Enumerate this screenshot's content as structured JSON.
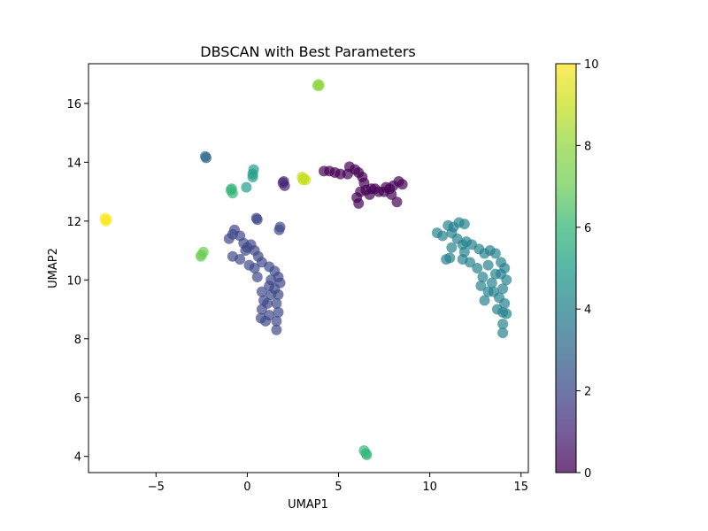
{
  "chart_data": {
    "type": "scatter",
    "title": "DBSCAN with Best Parameters",
    "xlabel": "UMAP1",
    "ylabel": "UMAP2",
    "xlim": [
      -8.7,
      15.4
    ],
    "ylim": [
      3.45,
      17.35
    ],
    "xticks": [
      -5,
      0,
      5,
      10,
      15
    ],
    "yticks": [
      4,
      6,
      8,
      10,
      12,
      14,
      16
    ],
    "grid": false,
    "colorbar": {
      "label": "",
      "range": [
        0,
        10
      ],
      "ticks": [
        0,
        2,
        4,
        6,
        8,
        10
      ],
      "colormap": "viridis"
    },
    "point_alpha": 0.7,
    "clusters": [
      {
        "label": 0,
        "color": "#440154",
        "points": [
          [
            4.2,
            13.7
          ],
          [
            4.5,
            13.7
          ],
          [
            4.8,
            13.65
          ],
          [
            5.1,
            13.6
          ],
          [
            5.5,
            13.6
          ],
          [
            5.6,
            13.85
          ],
          [
            5.9,
            13.75
          ],
          [
            6.1,
            13.65
          ],
          [
            6.3,
            13.5
          ],
          [
            6.4,
            13.3
          ],
          [
            6.2,
            13.0
          ],
          [
            6.0,
            12.8
          ],
          [
            6.1,
            12.6
          ],
          [
            6.5,
            13.05
          ],
          [
            6.8,
            13.1
          ],
          [
            7.2,
            13.0
          ],
          [
            7.5,
            13.0
          ],
          [
            7.8,
            13.1
          ],
          [
            8.0,
            13.2
          ],
          [
            8.3,
            13.35
          ],
          [
            8.5,
            13.25
          ],
          [
            7.9,
            12.9
          ],
          [
            8.2,
            12.65
          ],
          [
            7.6,
            13.15
          ],
          [
            7.0,
            13.1
          ],
          [
            6.7,
            12.9
          ]
        ]
      },
      {
        "label": 1,
        "color": "#482878",
        "points": [
          [
            2.0,
            13.35
          ],
          [
            2.05,
            13.2
          ],
          [
            1.95,
            13.3
          ]
        ]
      },
      {
        "label": 2,
        "color": "#3e4989",
        "points": [
          [
            -1.0,
            11.4
          ],
          [
            -0.8,
            11.55
          ],
          [
            -0.7,
            11.7
          ],
          [
            -0.4,
            11.5
          ],
          [
            -0.2,
            11.25
          ],
          [
            0.0,
            11.1
          ],
          [
            0.2,
            11.2
          ],
          [
            0.4,
            11.0
          ],
          [
            0.6,
            10.8
          ],
          [
            0.8,
            10.6
          ],
          [
            1.2,
            10.45
          ],
          [
            1.5,
            10.3
          ],
          [
            1.7,
            10.1
          ],
          [
            1.8,
            9.9
          ],
          [
            1.5,
            9.7
          ],
          [
            1.7,
            9.5
          ],
          [
            1.6,
            9.2
          ],
          [
            1.7,
            8.9
          ],
          [
            1.6,
            8.6
          ],
          [
            1.6,
            8.3
          ],
          [
            1.2,
            9.8
          ],
          [
            1.3,
            9.5
          ],
          [
            1.1,
            9.2
          ],
          [
            1.2,
            8.8
          ],
          [
            0.8,
            9.6
          ],
          [
            0.9,
            9.3
          ],
          [
            0.8,
            9.0
          ],
          [
            0.75,
            8.7
          ],
          [
            1.0,
            8.6
          ],
          [
            -0.8,
            10.8
          ],
          [
            -0.4,
            10.7
          ],
          [
            0.1,
            10.5
          ],
          [
            0.4,
            10.4
          ],
          [
            0.55,
            10.1
          ],
          [
            0.5,
            12.1
          ],
          [
            0.55,
            12.05
          ],
          [
            1.8,
            11.8
          ],
          [
            1.75,
            11.7
          ],
          [
            -0.1,
            11.0
          ],
          [
            1.3,
            10.0
          ]
        ]
      },
      {
        "label": 3,
        "color": "#31688e",
        "points": [
          [
            -2.3,
            14.2
          ],
          [
            -2.25,
            14.15
          ]
        ]
      },
      {
        "label": 4,
        "color": "#26828e",
        "points": [
          [
            10.4,
            11.6
          ],
          [
            10.7,
            11.5
          ],
          [
            11.0,
            11.85
          ],
          [
            11.3,
            11.8
          ],
          [
            11.6,
            11.95
          ],
          [
            11.9,
            11.9
          ],
          [
            11.2,
            11.6
          ],
          [
            11.5,
            11.4
          ],
          [
            11.8,
            11.2
          ],
          [
            11.2,
            11.1
          ],
          [
            12.0,
            11.3
          ],
          [
            11.9,
            10.95
          ],
          [
            12.3,
            11.2
          ],
          [
            12.7,
            11.05
          ],
          [
            13.0,
            10.9
          ],
          [
            13.3,
            11.0
          ],
          [
            13.6,
            10.9
          ],
          [
            13.9,
            10.6
          ],
          [
            14.1,
            10.4
          ],
          [
            14.2,
            10.0
          ],
          [
            14.0,
            9.7
          ],
          [
            13.8,
            9.4
          ],
          [
            14.1,
            9.2
          ],
          [
            14.0,
            8.9
          ],
          [
            14.2,
            8.85
          ],
          [
            14.0,
            8.5
          ],
          [
            14.0,
            8.2
          ],
          [
            13.6,
            10.2
          ],
          [
            13.4,
            9.9
          ],
          [
            13.2,
            9.6
          ],
          [
            13.0,
            9.3
          ],
          [
            12.8,
            9.8
          ],
          [
            13.2,
            10.5
          ],
          [
            12.6,
            10.4
          ],
          [
            12.2,
            10.6
          ],
          [
            11.8,
            10.7
          ],
          [
            11.1,
            10.75
          ],
          [
            10.9,
            10.7
          ],
          [
            13.7,
            9.0
          ],
          [
            13.9,
            10.2
          ],
          [
            12.9,
            10.1
          ],
          [
            13.5,
            9.6
          ]
        ]
      },
      {
        "label": 5,
        "color": "#1f9e89",
        "points": [
          [
            0.3,
            13.6
          ],
          [
            0.35,
            13.75
          ],
          [
            0.3,
            13.5
          ],
          [
            -0.05,
            13.15
          ]
        ]
      },
      {
        "label": 6,
        "color": "#35b779",
        "points": [
          [
            -0.9,
            13.05
          ],
          [
            -0.8,
            12.95
          ],
          [
            -0.85,
            13.1
          ],
          [
            6.4,
            4.2
          ],
          [
            6.5,
            4.1
          ],
          [
            6.55,
            4.05
          ]
        ]
      },
      {
        "label": 7,
        "color": "#6ece58",
        "points": [
          [
            -2.5,
            10.85
          ],
          [
            -2.4,
            10.95
          ],
          [
            -2.55,
            10.8
          ]
        ]
      },
      {
        "label": 8,
        "color": "#90d743",
        "points": [
          [
            3.85,
            16.6
          ],
          [
            3.9,
            16.65
          ],
          [
            3.95,
            16.6
          ]
        ]
      },
      {
        "label": 9,
        "color": "#c8e020",
        "points": [
          [
            3.0,
            13.5
          ],
          [
            3.1,
            13.45
          ],
          [
            3.2,
            13.4
          ],
          [
            3.05,
            13.4
          ]
        ]
      },
      {
        "label": 10,
        "color": "#fde725",
        "points": [
          [
            -7.8,
            12.1
          ],
          [
            -7.7,
            12.05
          ],
          [
            -7.75,
            12.0
          ]
        ]
      }
    ]
  }
}
